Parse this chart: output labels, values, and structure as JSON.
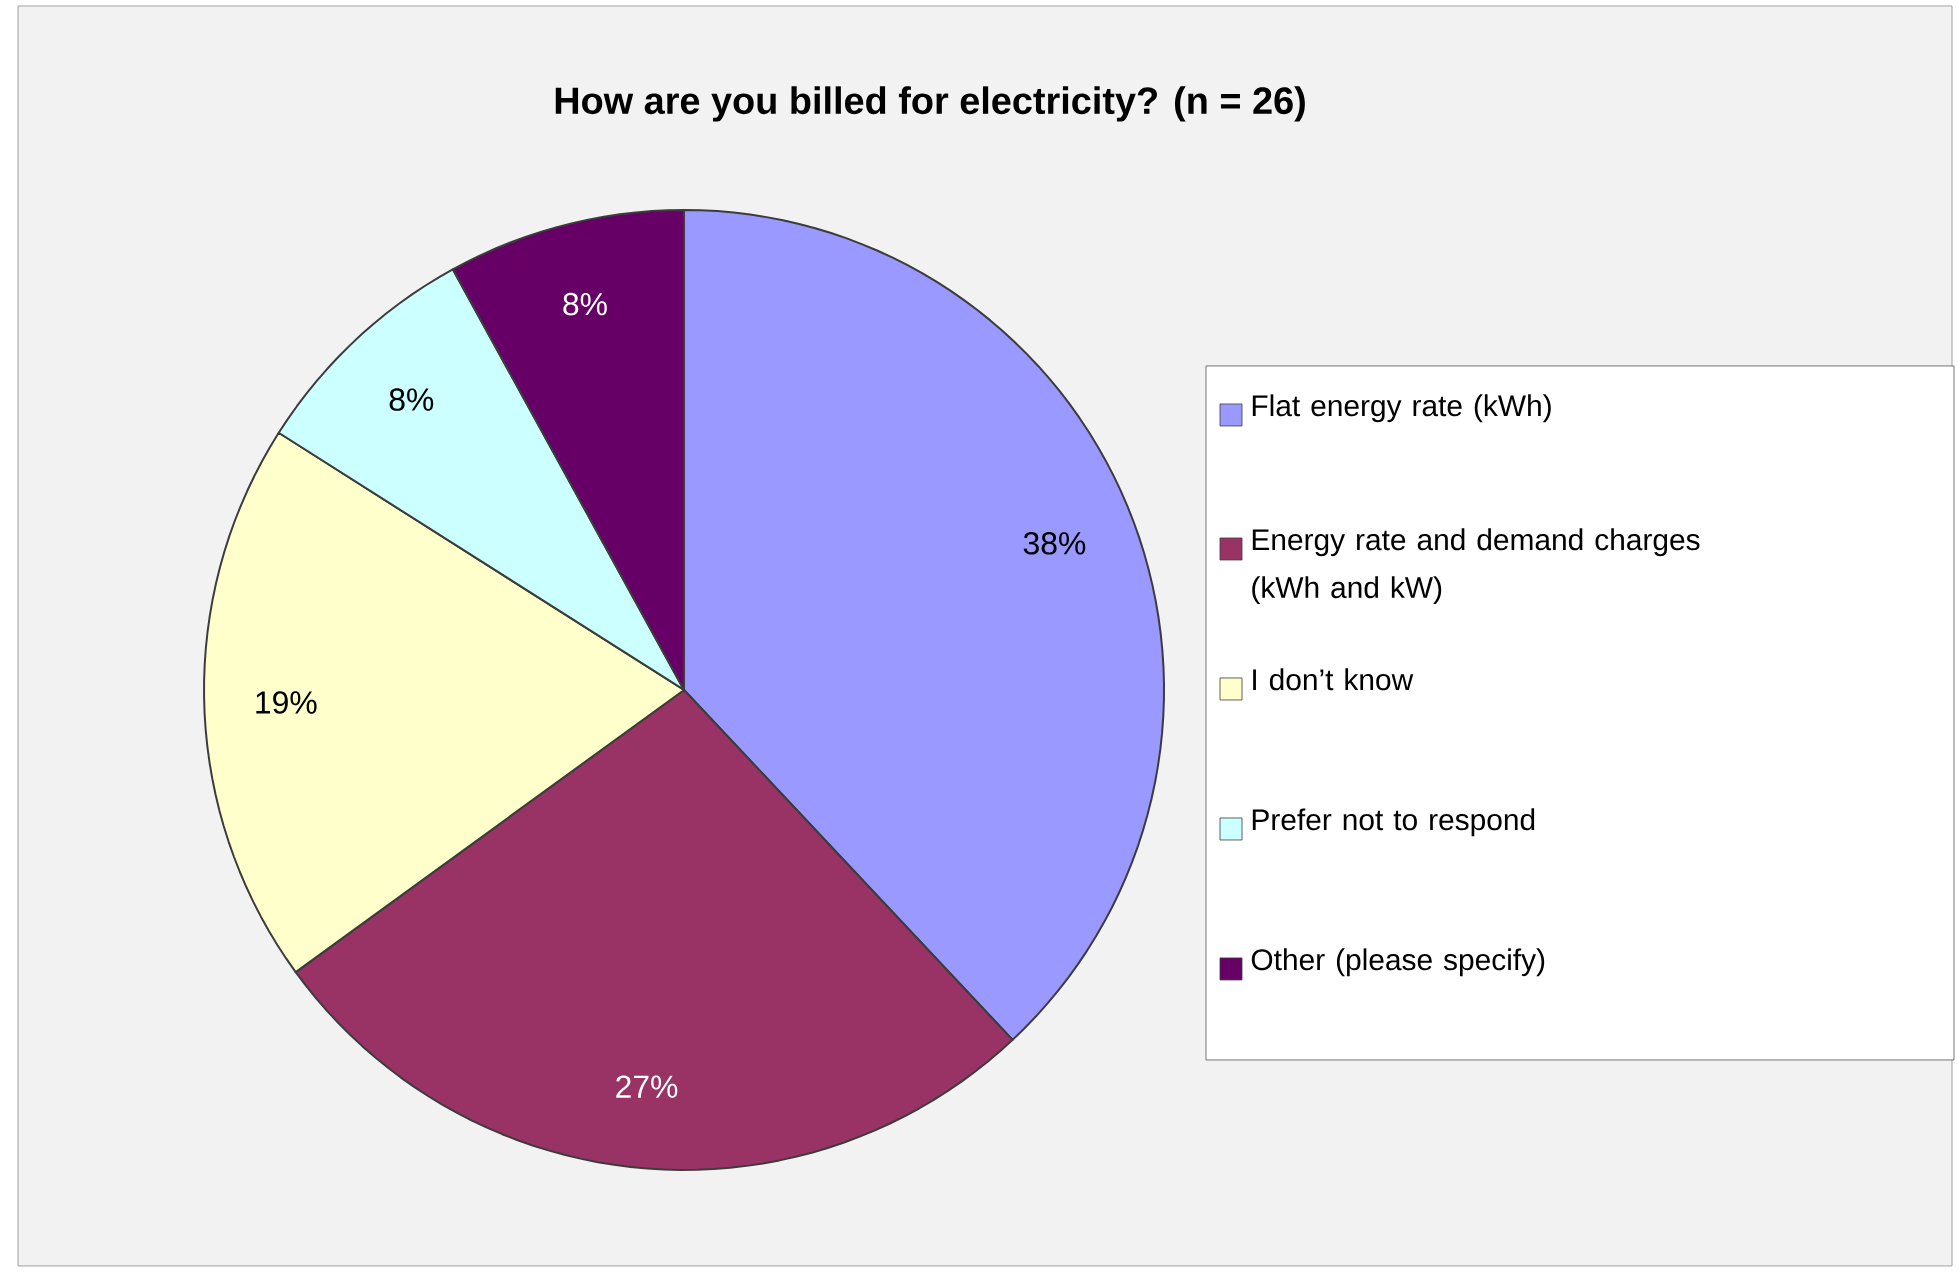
{
  "chart_data": {
    "type": "pie",
    "title": "How are you billed for electricity? (n = 26)",
    "categories": [
      "Flat energy rate (kWh)",
      "Energy rate and demand charges (kWh and kW)",
      "I don’t know",
      "Prefer not to respond",
      "Other (please specify)"
    ],
    "values": [
      38,
      27,
      19,
      8,
      8
    ],
    "value_labels": [
      "38%",
      "27%",
      "19%",
      "8%",
      "8%"
    ],
    "colors": [
      "#9999ff",
      "#993366",
      "#ffffcc",
      "#ccffff",
      "#660066"
    ],
    "legend": "right"
  }
}
